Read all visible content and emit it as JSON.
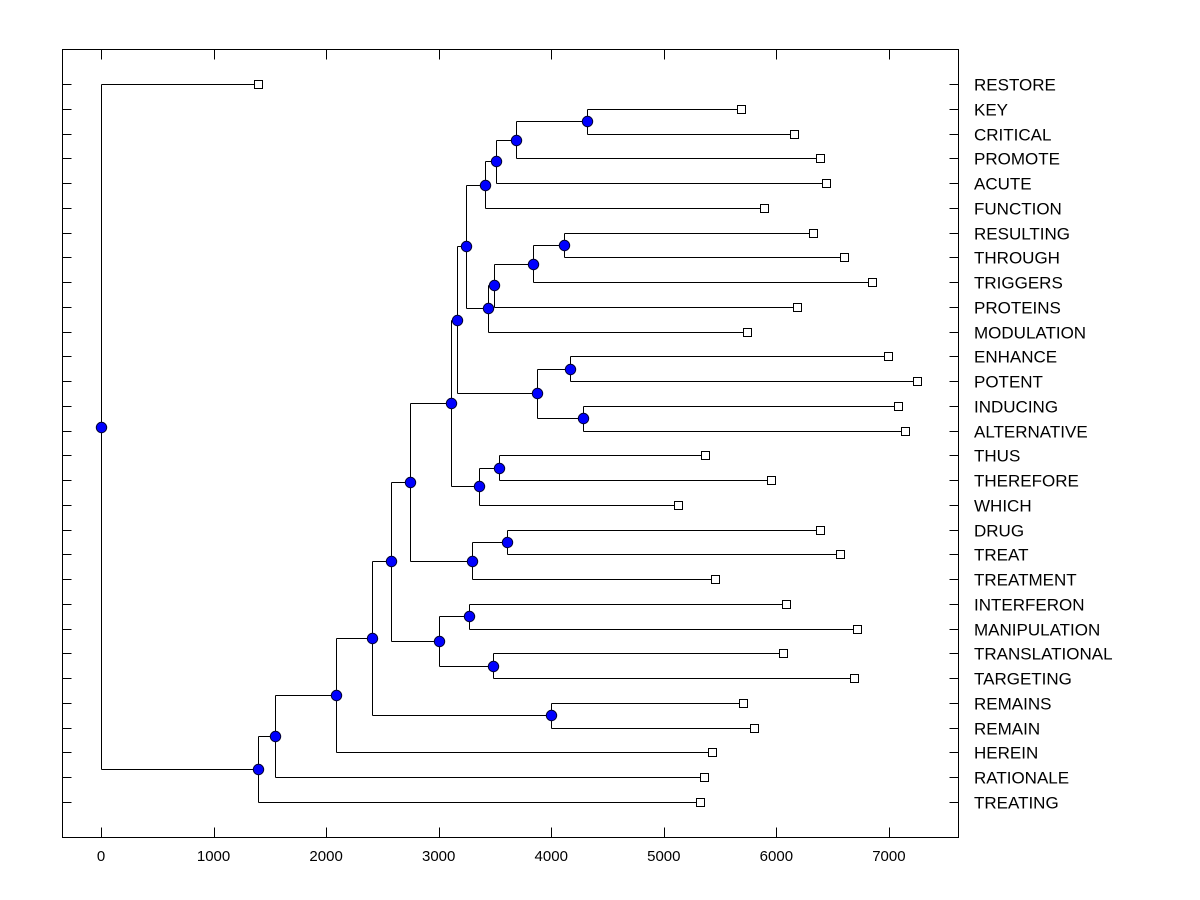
{
  "chart_data": {
    "type": "dendrogram",
    "title": "",
    "xlabel": "",
    "ylabel": "",
    "xlim": [
      -350,
      7600
    ],
    "xticks": [
      0,
      1000,
      2000,
      3000,
      4000,
      5000,
      6000,
      7000
    ],
    "xtick_labels": [
      "0",
      "1000",
      "2000",
      "3000",
      "4000",
      "5000",
      "6000",
      "7000"
    ],
    "grid": false,
    "leaf_order": [
      "RESTORE",
      "KEY",
      "CRITICAL",
      "PROMOTE",
      "ACUTE",
      "FUNCTION",
      "RESULTING",
      "THROUGH",
      "TRIGGERS",
      "PROTEINS",
      "MODULATION",
      "ENHANCE",
      "POTENT",
      "INDUCING",
      "ALTERNATIVE",
      "THUS",
      "THEREFORE",
      "WHICH",
      "DRUG",
      "TREAT",
      "TREATMENT",
      "INTERFERON",
      "MANIPULATION",
      "TRANSLATIONAL",
      "TARGETING",
      "REMAINS",
      "REMAIN",
      "HEREIN",
      "RATIONALE",
      "TREATING"
    ],
    "leaf_values": {
      "RESTORE": 1395,
      "KEY": 5686,
      "CRITICAL": 6157,
      "PROMOTE": 6388,
      "ACUTE": 6441,
      "FUNCTION": 5890,
      "RESULTING": 6325,
      "THROUGH": 6601,
      "TRIGGERS": 6850,
      "PROTEINS": 6183,
      "MODULATION": 5739,
      "ENHANCE": 6992,
      "POTENT": 7250,
      "INDUCING": 7081,
      "ALTERNATIVE": 7143,
      "THUS": 5366,
      "THEREFORE": 5952,
      "WHICH": 5126,
      "DRUG": 6388,
      "TREAT": 6565,
      "TREATMENT": 5455,
      "INTERFERON": 6086,
      "MANIPULATION": 6716,
      "TRANSLATIONAL": 6059,
      "TARGETING": 6690,
      "REMAINS": 5704,
      "REMAIN": 5801,
      "HEREIN": 5428,
      "RATIONALE": 5357,
      "TREATING": 5322
    },
    "tree": {
      "id": "root",
      "value": 0,
      "children": [
        {
          "leaf": "RESTORE"
        },
        {
          "id": "n1",
          "value": 1395,
          "children": [
            {
              "id": "n2",
              "value": 1546,
              "children": [
                {
                  "id": "n3",
                  "value": 2088,
                  "children": [
                    {
                      "id": "n4",
                      "value": 2408,
                      "children": [
                        {
                          "id": "n5",
                          "value": 2576,
                          "children": [
                            {
                              "id": "n6",
                              "value": 2745,
                              "children": [
                                {
                                  "id": "n7",
                                  "value": 3109,
                                  "children": [
                                    {
                                      "id": "n8",
                                      "value": 3163,
                                      "children": [
                                        {
                                          "id": "n9",
                                          "value": 3243,
                                          "children": [
                                            {
                                              "id": "n10",
                                              "value": 3412,
                                              "children": [
                                                {
                                                  "id": "n11",
                                                  "value": 3509,
                                                  "children": [
                                                    {
                                                      "id": "n12",
                                                      "value": 3687,
                                                      "children": [
                                                        {
                                                          "id": "n13",
                                                          "value": 4318,
                                                          "children": [
                                                            {
                                                              "leaf": "KEY"
                                                            },
                                                            {
                                                              "leaf": "CRITICAL"
                                                            }
                                                          ]
                                                        },
                                                        {
                                                          "leaf": "PROMOTE"
                                                        }
                                                      ]
                                                    },
                                                    {
                                                      "leaf": "ACUTE"
                                                    }
                                                  ]
                                                },
                                                {
                                                  "leaf": "FUNCTION"
                                                }
                                              ]
                                            },
                                            {
                                              "id": "n14",
                                              "value": 3438,
                                              "children": [
                                                {
                                                  "id": "n15",
                                                  "value": 3491,
                                                  "children": [
                                                    {
                                                      "id": "n16",
                                                      "value": 3838,
                                                      "children": [
                                                        {
                                                          "id": "n17",
                                                          "value": 4113,
                                                          "children": [
                                                            {
                                                              "leaf": "RESULTING"
                                                            },
                                                            {
                                                              "leaf": "THROUGH"
                                                            }
                                                          ]
                                                        },
                                                        {
                                                          "leaf": "TRIGGERS"
                                                        }
                                                      ]
                                                    },
                                                    {
                                                      "leaf": "PROTEINS"
                                                    }
                                                  ]
                                                },
                                                {
                                                  "leaf": "MODULATION"
                                                }
                                              ]
                                            }
                                          ]
                                        },
                                        {
                                          "id": "n18",
                                          "value": 3873,
                                          "children": [
                                            {
                                              "id": "n19",
                                              "value": 4167,
                                              "children": [
                                                {
                                                  "leaf": "ENHANCE"
                                                },
                                                {
                                                  "leaf": "POTENT"
                                                }
                                              ]
                                            },
                                            {
                                              "id": "n20",
                                              "value": 4282,
                                              "children": [
                                                {
                                                  "leaf": "INDUCING"
                                                },
                                                {
                                                  "leaf": "ALTERNATIVE"
                                                }
                                              ]
                                            }
                                          ]
                                        }
                                      ]
                                    },
                                    {
                                      "id": "n21",
                                      "value": 3358,
                                      "children": [
                                        {
                                          "id": "n22",
                                          "value": 3536,
                                          "children": [
                                            {
                                              "leaf": "THUS"
                                            },
                                            {
                                              "leaf": "THEREFORE"
                                            }
                                          ]
                                        },
                                        {
                                          "leaf": "WHICH"
                                        }
                                      ]
                                    }
                                  ]
                                },
                                {
                                  "id": "n23",
                                  "value": 3296,
                                  "children": [
                                    {
                                      "id": "n24",
                                      "value": 3607,
                                      "children": [
                                        {
                                          "leaf": "DRUG"
                                        },
                                        {
                                          "leaf": "TREAT"
                                        }
                                      ]
                                    },
                                    {
                                      "leaf": "TREATMENT"
                                    }
                                  ]
                                }
                              ]
                            },
                            {
                              "id": "n25",
                              "value": 3000,
                              "children": [
                                {
                                  "id": "n26",
                                  "value": 3269,
                                  "children": [
                                    {
                                      "leaf": "INTERFERON"
                                    },
                                    {
                                      "leaf": "MANIPULATION"
                                    }
                                  ]
                                },
                                {
                                  "id": "n27",
                                  "value": 3483,
                                  "children": [
                                    {
                                      "leaf": "TRANSLATIONAL"
                                    },
                                    {
                                      "leaf": "TARGETING"
                                    }
                                  ]
                                }
                              ]
                            }
                          ]
                        },
                        {
                          "id": "n28",
                          "value": 4000,
                          "children": [
                            {
                              "leaf": "REMAINS"
                            },
                            {
                              "leaf": "REMAIN"
                            }
                          ]
                        }
                      ]
                    },
                    {
                      "leaf": "HEREIN"
                    }
                  ]
                },
                {
                  "leaf": "RATIONALE"
                }
              ]
            },
            {
              "leaf": "TREATING"
            }
          ]
        }
      ]
    },
    "colors": {
      "node_fill": "#0000FF",
      "node_stroke": "#000033",
      "line": "#000000",
      "leaf_marker_fill": "#FFFFFF"
    }
  }
}
